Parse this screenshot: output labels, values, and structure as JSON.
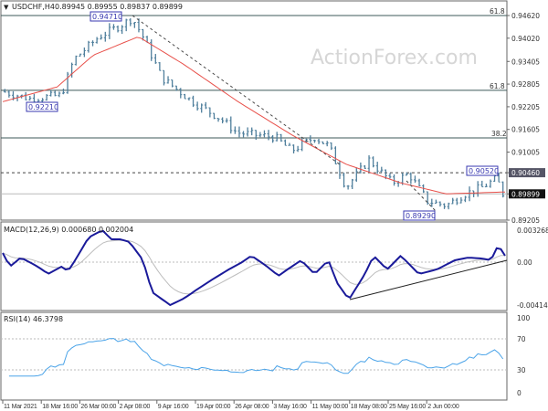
{
  "header": {
    "symbol": "USDCHF,H4",
    "ohlc": "0.89945 0.89955 0.89837 0.89899"
  },
  "watermark": "ActionForex.com",
  "annotations": {
    "high_label": "0.94710",
    "low_label_1": "0.92210",
    "low_label_2": "0.89290",
    "high_label_2": "0.90520",
    "fib_1": "61.8",
    "fib_2": "61.8",
    "fib_3": "38.2"
  },
  "colors": {
    "bars": "#4f7f9c",
    "ma": "#e8504a",
    "macd": "#1a1a9a",
    "signal": "#bdbdbd",
    "rsi": "#4aa3e8",
    "label_border": "#3a3ab0"
  },
  "chart_data": [
    {
      "type": "line",
      "title": "USDCHF,H4",
      "ylim": [
        0.89205,
        0.9462
      ],
      "yticks": [
        "0.94620",
        "0.94020",
        "0.93405",
        "0.92805",
        "0.92205",
        "0.91605",
        "0.91005",
        "0.90460",
        "0.89899",
        "0.89205"
      ],
      "current_price": "0.89899",
      "marked_level": "0.90460",
      "fib_levels": [
        0.9462,
        0.92641,
        0.9138
      ],
      "price_waypoints": [
        [
          0,
          0.9261
        ],
        [
          6.5,
          0.9242
        ],
        [
          14,
          0.9251
        ],
        [
          17,
          0.9346
        ],
        [
          23,
          0.9406
        ],
        [
          28,
          0.9435
        ],
        [
          31,
          0.9455
        ],
        [
          33.5,
          0.9406
        ],
        [
          38,
          0.9297
        ],
        [
          45,
          0.9237
        ],
        [
          52,
          0.9189
        ],
        [
          56,
          0.9152
        ],
        [
          65,
          0.914
        ],
        [
          69,
          0.9104
        ],
        [
          74.5,
          0.914
        ],
        [
          78,
          0.9116
        ],
        [
          82,
          0.9007
        ],
        [
          87.5,
          0.908
        ],
        [
          93,
          0.9019
        ],
        [
          97,
          0.9043
        ],
        [
          101.5,
          0.8971
        ],
        [
          106,
          0.8959
        ],
        [
          110,
          0.8988
        ],
        [
          114.5,
          0.9007
        ],
        [
          118,
          0.9031
        ],
        [
          119.5,
          0.899
        ]
      ],
      "ma_waypoints": [
        [
          0,
          0.9234
        ],
        [
          13,
          0.9273
        ],
        [
          21.6,
          0.9357
        ],
        [
          32.4,
          0.9406
        ],
        [
          43.2,
          0.9333
        ],
        [
          56.2,
          0.9234
        ],
        [
          69.2,
          0.9145
        ],
        [
          82.1,
          0.9068
        ],
        [
          95.1,
          0.9019
        ],
        [
          105.9,
          0.899
        ],
        [
          120,
          0.8995
        ]
      ],
      "xticks": [
        "11 Mar 2021",
        "18 Mar 16:00",
        "26 Mar 00:00",
        "2 Apr 08:00",
        "9 Apr 16:00",
        "19 Apr 00:00",
        "26 Apr 08:00",
        "3 May 16:00",
        "11 May 00:00",
        "18 May 08:00",
        "25 May 16:00",
        "2 Jun 00:00"
      ]
    },
    {
      "type": "line",
      "title": "MACD(12,26,9) 0.000680 0.002004",
      "ylim": [
        -0.004144,
        0.003268
      ],
      "yticks": [
        "0.003268",
        "0.00",
        "-0.004144"
      ],
      "macd": [
        [
          0,
          0.00088
        ],
        [
          1.7,
          -0.00044
        ],
        [
          4.3,
          0.00044
        ],
        [
          7.6,
          -0.00026
        ],
        [
          9.7,
          -0.0008
        ],
        [
          10.8,
          -0.00115
        ],
        [
          14,
          -0.00044
        ],
        [
          15.6,
          -0.00088
        ],
        [
          17.3,
          0.00018
        ],
        [
          20.5,
          0.00238
        ],
        [
          23.8,
          0.00309
        ],
        [
          25.9,
          0.00221
        ],
        [
          28.1,
          0.00221
        ],
        [
          30.3,
          0.00194
        ],
        [
          33.5,
          0.00018
        ],
        [
          35.7,
          -0.00291
        ],
        [
          40,
          -0.00415
        ],
        [
          43.2,
          -0.00353
        ],
        [
          46.4,
          -0.00265
        ],
        [
          49.7,
          -0.00177
        ],
        [
          54,
          -0.00071
        ],
        [
          57.2,
          0
        ],
        [
          59.4,
          0.00062
        ],
        [
          62.6,
          -0.00026
        ],
        [
          65.9,
          -0.00132
        ],
        [
          68,
          -0.00071
        ],
        [
          71.3,
          0.00018
        ],
        [
          74.5,
          -0.00115
        ],
        [
          77.8,
          0.00018
        ],
        [
          79.9,
          -0.00203
        ],
        [
          82.7,
          -0.00362
        ],
        [
          86.5,
          -0.00115
        ],
        [
          88.6,
          0.00062
        ],
        [
          91.8,
          -0.00071
        ],
        [
          95.1,
          0.00062
        ],
        [
          99.4,
          -0.00115
        ],
        [
          103.7,
          -0.00071
        ],
        [
          108,
          0.00018
        ],
        [
          111.2,
          0.00044
        ],
        [
          114.5,
          0.00035
        ],
        [
          116.6,
          0.00018
        ],
        [
          118.4,
          0.00168
        ],
        [
          119.9,
          0.00062
        ]
      ]
    },
    {
      "type": "line",
      "title": "RSI(14) 46.3798",
      "ylim": [
        0,
        100
      ],
      "yticks": [
        "100",
        "70",
        "30",
        "0"
      ],
      "levels": [
        70,
        30
      ]
    }
  ]
}
